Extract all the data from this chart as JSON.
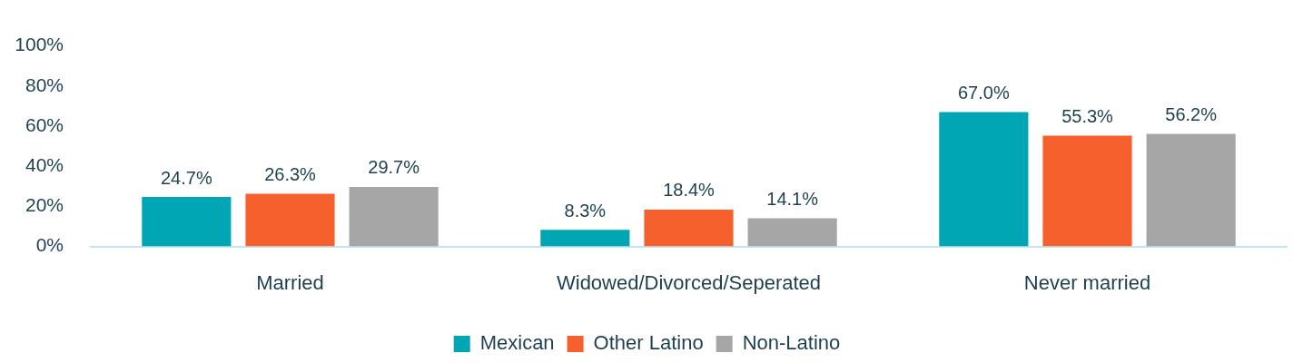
{
  "chart_data": {
    "type": "bar",
    "categories": [
      "Married",
      "Widowed/Divorced/Seperated",
      "Never married"
    ],
    "series": [
      {
        "name": "Mexican",
        "color": "#00a6b4",
        "values": [
          24.7,
          8.3,
          67.0
        ],
        "value_labels": [
          "24.7%",
          "8.3%",
          "67.0%"
        ]
      },
      {
        "name": "Other Latino",
        "color": "#f5602d",
        "values": [
          26.3,
          18.4,
          55.3
        ],
        "value_labels": [
          "26.3%",
          "18.4%",
          "55.3%"
        ]
      },
      {
        "name": "Non-Latino",
        "color": "#a6a6a6",
        "values": [
          29.7,
          14.1,
          56.2
        ],
        "value_labels": [
          "29.7%",
          "14.1%",
          "56.2%"
        ]
      }
    ],
    "ylim": [
      0,
      100
    ],
    "yticks": [
      {
        "value": 0,
        "label": "0%"
      },
      {
        "value": 20,
        "label": "20%"
      },
      {
        "value": 40,
        "label": "40%"
      },
      {
        "value": 60,
        "label": "60%"
      },
      {
        "value": 80,
        "label": "80%"
      },
      {
        "value": 100,
        "label": "100%"
      }
    ],
    "grid": false,
    "legend": "bottom"
  }
}
